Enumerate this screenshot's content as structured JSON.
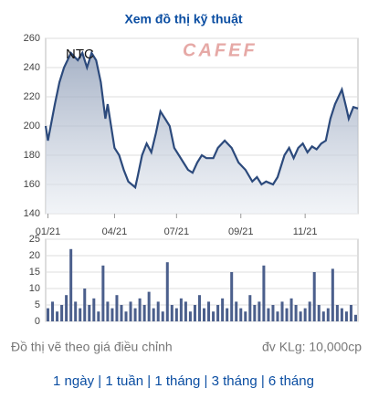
{
  "header": {
    "title": "Xem đồ thị kỹ thuật"
  },
  "chart_data": [
    {
      "type": "line",
      "annotation": "NTC",
      "watermark": "CAFEF",
      "color": "#2c4a7c",
      "grid": true,
      "x": [
        0,
        0.5,
        2,
        3,
        4,
        5.5,
        7,
        8,
        9,
        10,
        11,
        12,
        13,
        13.5,
        14.5,
        15,
        16,
        17,
        18,
        19.5,
        20,
        21,
        22,
        23,
        24,
        25,
        26,
        27,
        28,
        29,
        30,
        31,
        32,
        33,
        34,
        35,
        36.5,
        37.5,
        39,
        40.5,
        42,
        43.5,
        45,
        46,
        47,
        48,
        49.5,
        50.5,
        52,
        53,
        54,
        55,
        56,
        57,
        58,
        59,
        60,
        61,
        62,
        63,
        64.5,
        65.5,
        66,
        67,
        68
      ],
      "values": [
        200,
        190,
        215,
        230,
        240,
        250,
        245,
        250,
        240,
        250,
        245,
        230,
        205,
        215,
        195,
        185,
        180,
        170,
        162,
        158,
        165,
        180,
        188,
        182,
        195,
        210,
        205,
        200,
        185,
        180,
        175,
        170,
        168,
        175,
        180,
        178,
        178,
        185,
        190,
        185,
        175,
        170,
        162,
        165,
        160,
        162,
        160,
        165,
        180,
        185,
        178,
        185,
        188,
        182,
        186,
        184,
        188,
        190,
        205,
        215,
        225,
        212,
        205,
        213,
        212
      ],
      "xlim": [
        0,
        68
      ],
      "xticks": [
        {
          "value": 0.5,
          "label": "01/21"
        },
        {
          "value": 15,
          "label": "04/21"
        },
        {
          "value": 28.5,
          "label": "07/21"
        },
        {
          "value": 42.5,
          "label": "09/21"
        },
        {
          "value": 56.5,
          "label": "11/21"
        }
      ],
      "ylim": [
        140,
        260
      ],
      "yticks": [
        140,
        160,
        180,
        200,
        220,
        240,
        260
      ]
    },
    {
      "type": "bar",
      "color": "#4b5f8c",
      "grid": true,
      "values": [
        4,
        6,
        3,
        5,
        8,
        22,
        6,
        4,
        10,
        5,
        7,
        3,
        17,
        6,
        4,
        8,
        5,
        3,
        6,
        4,
        7,
        5,
        9,
        4,
        6,
        3,
        18,
        5,
        4,
        7,
        6,
        3,
        5,
        8,
        4,
        6,
        3,
        5,
        7,
        4,
        15,
        6,
        4,
        3,
        8,
        5,
        6,
        17,
        4,
        5,
        3,
        6,
        4,
        7,
        5,
        3,
        4,
        6,
        15,
        5,
        3,
        4,
        16,
        5,
        4,
        3,
        5,
        2
      ],
      "ylim": [
        0,
        25
      ],
      "yticks": [
        0,
        5,
        10,
        15,
        20,
        25
      ]
    }
  ],
  "footer": {
    "note": "Đồ thị vẽ theo giá điều chỉnh",
    "unit": "đv KLg: 10,000cp",
    "links": [
      "1 ngày",
      "1 tuần",
      "1 tháng",
      "3 tháng",
      "6 tháng"
    ],
    "separator": "|"
  }
}
